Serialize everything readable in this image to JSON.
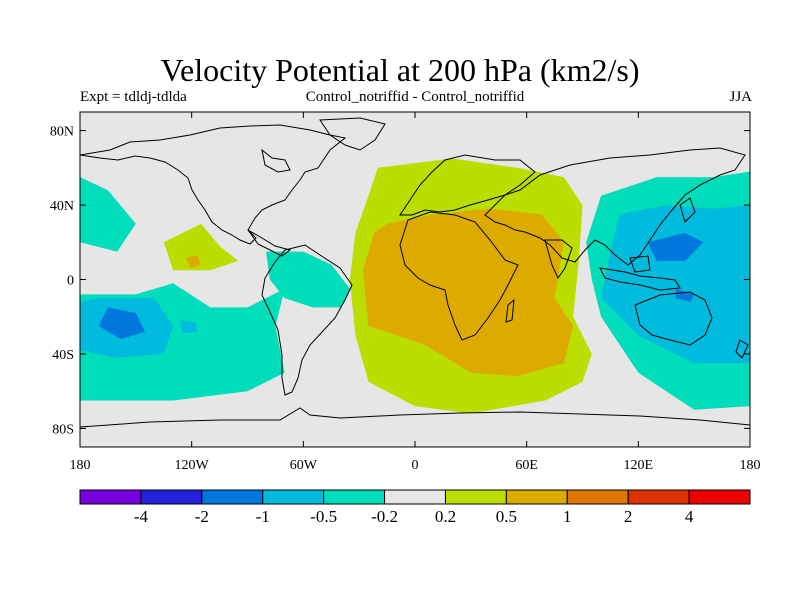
{
  "chart_data": {
    "type": "heatmap",
    "title": "Velocity Potential at 200 hPa (km2/s)",
    "subtitle_left": "Expt = tdldj-tdlda",
    "subtitle_center": "Control_notriffid - Control_notriffid",
    "subtitle_right": "JJA",
    "x_ticks": [
      {
        "value": -180,
        "label": "180"
      },
      {
        "value": -120,
        "label": "120W"
      },
      {
        "value": -60,
        "label": "60W"
      },
      {
        "value": 0,
        "label": "0"
      },
      {
        "value": 60,
        "label": "60E"
      },
      {
        "value": 120,
        "label": "120E"
      },
      {
        "value": 180,
        "label": "180"
      }
    ],
    "y_ticks": [
      {
        "value": 80,
        "label": "80N"
      },
      {
        "value": 40,
        "label": "40N"
      },
      {
        "value": 0,
        "label": "0"
      },
      {
        "value": -40,
        "label": "40S"
      },
      {
        "value": -80,
        "label": "80S"
      }
    ],
    "xlim": [
      -180,
      180
    ],
    "ylim": [
      -90,
      90
    ],
    "colorbar": {
      "colors": [
        "#7700dd",
        "#2222dd",
        "#0077dd",
        "#00bbdd",
        "#00ddbb",
        "#e6e6e6",
        "#bbdd00",
        "#ddaa00",
        "#dd7700",
        "#dd3300",
        "#ee0000"
      ],
      "labels": [
        "-4",
        "-2",
        "-1",
        "-0.5",
        "-0.2",
        "0.2",
        "0.5",
        "1",
        "2",
        "4"
      ]
    },
    "regions": [
      {
        "name": "africa-eurasia-positive-0.2",
        "level": 6,
        "pts": [
          [
            -20,
            60
          ],
          [
            20,
            65
          ],
          [
            55,
            60
          ],
          [
            80,
            55
          ],
          [
            90,
            40
          ],
          [
            88,
            10
          ],
          [
            85,
            -20
          ],
          [
            95,
            -40
          ],
          [
            90,
            -55
          ],
          [
            70,
            -65
          ],
          [
            30,
            -72
          ],
          [
            0,
            -68
          ],
          [
            -25,
            -55
          ],
          [
            -32,
            -30
          ],
          [
            -35,
            0
          ],
          [
            -32,
            25
          ],
          [
            -25,
            45
          ]
        ]
      },
      {
        "name": "africa-positive-0.5",
        "level": 7,
        "pts": [
          [
            -15,
            30
          ],
          [
            10,
            35
          ],
          [
            40,
            38
          ],
          [
            68,
            35
          ],
          [
            80,
            20
          ],
          [
            75,
            -10
          ],
          [
            85,
            -25
          ],
          [
            80,
            -45
          ],
          [
            55,
            -52
          ],
          [
            30,
            -50
          ],
          [
            5,
            -35
          ],
          [
            -25,
            -25
          ],
          [
            -28,
            5
          ],
          [
            -22,
            25
          ]
        ]
      },
      {
        "name": "pacific-positive-0.2",
        "level": 6,
        "pts": [
          [
            -135,
            20
          ],
          [
            -115,
            30
          ],
          [
            -105,
            18
          ],
          [
            -95,
            10
          ],
          [
            -110,
            5
          ],
          [
            -130,
            5
          ]
        ]
      },
      {
        "name": "pacific-positive-0.5",
        "level": 7,
        "pts": [
          [
            -123,
            12
          ],
          [
            -117,
            13
          ],
          [
            -115,
            8
          ],
          [
            -121,
            6
          ]
        ]
      },
      {
        "name": "east-pacific-negative-0.2",
        "level": 4,
        "pts": [
          [
            -180,
            -8
          ],
          [
            -150,
            -8
          ],
          [
            -130,
            -2
          ],
          [
            -110,
            -15
          ],
          [
            -90,
            -15
          ],
          [
            -70,
            -5
          ],
          [
            -75,
            -25
          ],
          [
            -70,
            -50
          ],
          [
            -90,
            -60
          ],
          [
            -130,
            -65
          ],
          [
            -180,
            -65
          ]
        ]
      },
      {
        "name": "west-pacific-negative-0.2",
        "level": 4,
        "pts": [
          [
            100,
            45
          ],
          [
            130,
            55
          ],
          [
            160,
            55
          ],
          [
            180,
            58
          ],
          [
            180,
            -68
          ],
          [
            150,
            -70
          ],
          [
            120,
            -50
          ],
          [
            100,
            -20
          ],
          [
            95,
            0
          ],
          [
            92,
            20
          ]
        ]
      },
      {
        "name": "north-pacific-negative-0.2",
        "level": 4,
        "pts": [
          [
            -180,
            55
          ],
          [
            -165,
            48
          ],
          [
            -150,
            30
          ],
          [
            -160,
            15
          ],
          [
            -180,
            20
          ]
        ]
      },
      {
        "name": "south-america-negative-0.2",
        "level": 4,
        "pts": [
          [
            -80,
            15
          ],
          [
            -60,
            15
          ],
          [
            -45,
            8
          ],
          [
            -35,
            -5
          ],
          [
            -40,
            -15
          ],
          [
            -55,
            -15
          ],
          [
            -70,
            -10
          ],
          [
            -78,
            0
          ]
        ]
      },
      {
        "name": "west-pacific-negative-0.5",
        "level": 3,
        "pts": [
          [
            110,
            35
          ],
          [
            135,
            40
          ],
          [
            160,
            38
          ],
          [
            180,
            40
          ],
          [
            180,
            -45
          ],
          [
            150,
            -45
          ],
          [
            120,
            -30
          ],
          [
            100,
            -10
          ],
          [
            105,
            15
          ]
        ]
      },
      {
        "name": "east-pacific-negative-0.5",
        "level": 3,
        "pts": [
          [
            -170,
            -10
          ],
          [
            -140,
            -10
          ],
          [
            -130,
            -25
          ],
          [
            -135,
            -40
          ],
          [
            -160,
            -42
          ],
          [
            -180,
            -38
          ],
          [
            -180,
            -12
          ]
        ]
      },
      {
        "name": "west-pacific-negative-1",
        "level": 2,
        "pts": [
          [
            125,
            20
          ],
          [
            145,
            25
          ],
          [
            155,
            20
          ],
          [
            145,
            10
          ],
          [
            130,
            10
          ]
        ]
      },
      {
        "name": "east-pacific-negative-1",
        "level": 2,
        "pts": [
          [
            -165,
            -15
          ],
          [
            -150,
            -18
          ],
          [
            -145,
            -28
          ],
          [
            -158,
            -32
          ],
          [
            -170,
            -25
          ]
        ]
      },
      {
        "name": "southeast-pacific-negative-0.5",
        "level": 3,
        "pts": [
          [
            -126,
            -22
          ],
          [
            -118,
            -23
          ],
          [
            -117,
            -28
          ],
          [
            -125,
            -29
          ]
        ]
      },
      {
        "name": "australia-negative-1",
        "level": 2,
        "pts": [
          [
            140,
            -5
          ],
          [
            150,
            -8
          ],
          [
            148,
            -12
          ],
          [
            140,
            -10
          ]
        ]
      }
    ]
  }
}
